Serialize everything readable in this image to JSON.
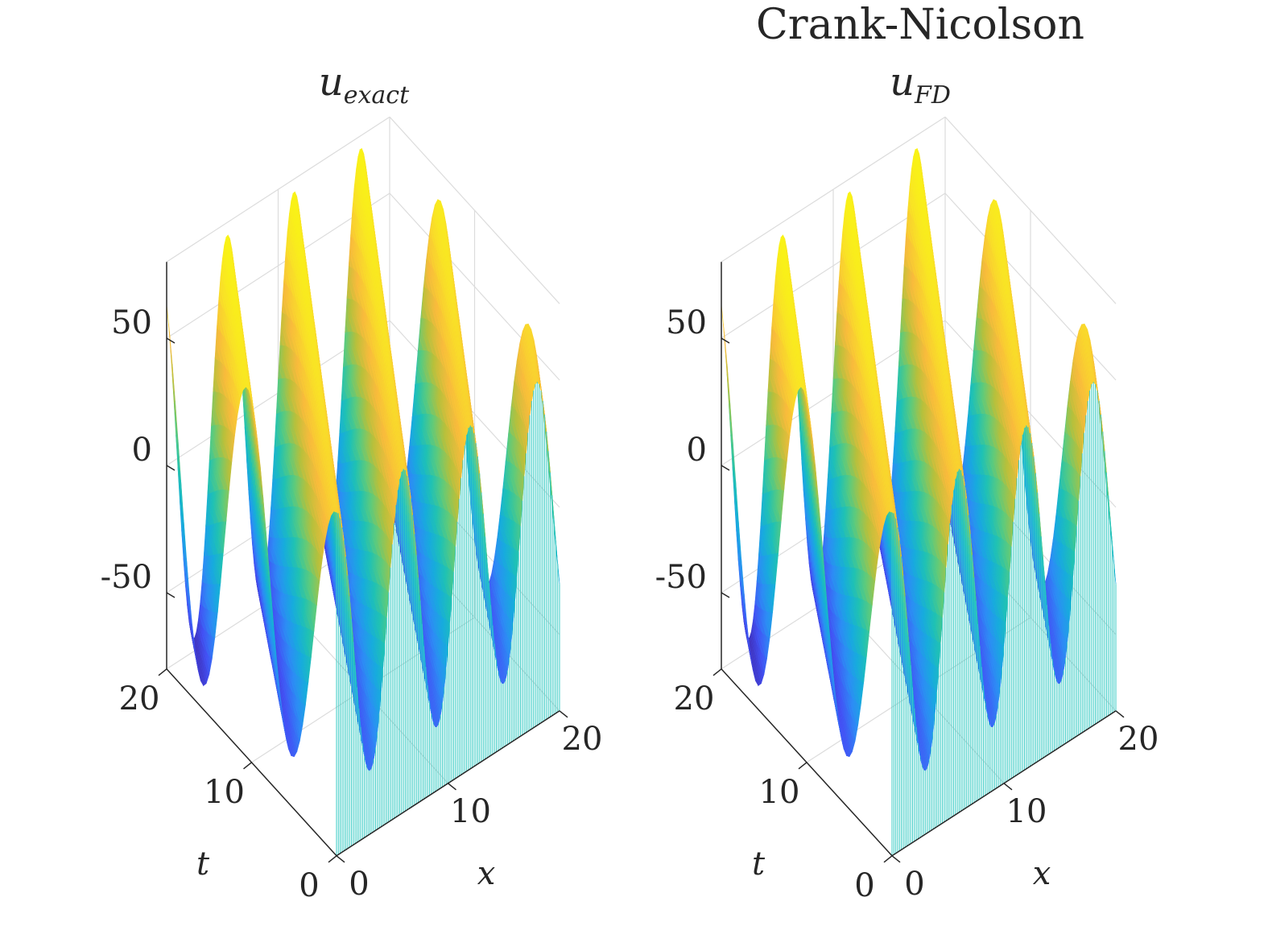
{
  "figure": {
    "suptitle": "Crank-Nicolson"
  },
  "colors": {
    "colormap": [
      "#3e26a8",
      "#4352f5",
      "#2d8df5",
      "#17acdd",
      "#20c2b3",
      "#5fcb7b",
      "#b8c03b",
      "#f9bb3c",
      "#f9e326",
      "#f9fb0e"
    ],
    "front_edge": "#38cbc4",
    "axis": "#262626",
    "grid": "#dcdcdc"
  },
  "chart_data": [
    {
      "type": "surface",
      "title": "u",
      "title_subscript": "exact",
      "xlabel": "x",
      "ylabel": "t",
      "zlabel": "",
      "xlim": [
        0,
        20
      ],
      "ylim": [
        0,
        20
      ],
      "zlim": [
        -80,
        80
      ],
      "xticks": [
        "0",
        "10",
        "20"
      ],
      "yticks": [
        "0",
        "10",
        "20"
      ],
      "zticks": [
        "-50",
        "0",
        "50"
      ],
      "grid": true,
      "colormap": "parula",
      "surface": {
        "description_free": true,
        "x_samples": 120,
        "t_samples": 60,
        "wave_number_x": 1.05,
        "wave_number_t": 0.6,
        "amplitude_at_t0": 55,
        "amplitude_at_t20": 75
      }
    },
    {
      "type": "surface",
      "title": "u",
      "title_subscript": "FD",
      "xlabel": "x",
      "ylabel": "t",
      "zlabel": "",
      "xlim": [
        0,
        20
      ],
      "ylim": [
        0,
        20
      ],
      "zlim": [
        -80,
        80
      ],
      "xticks": [
        "0",
        "10",
        "20"
      ],
      "yticks": [
        "0",
        "10",
        "20"
      ],
      "zticks": [
        "-50",
        "0",
        "50"
      ],
      "grid": true,
      "colormap": "parula",
      "surface": {
        "x_samples": 120,
        "t_samples": 60,
        "wave_number_x": 1.05,
        "wave_number_t": 0.6,
        "amplitude_at_t0": 55,
        "amplitude_at_t20": 75
      }
    }
  ]
}
